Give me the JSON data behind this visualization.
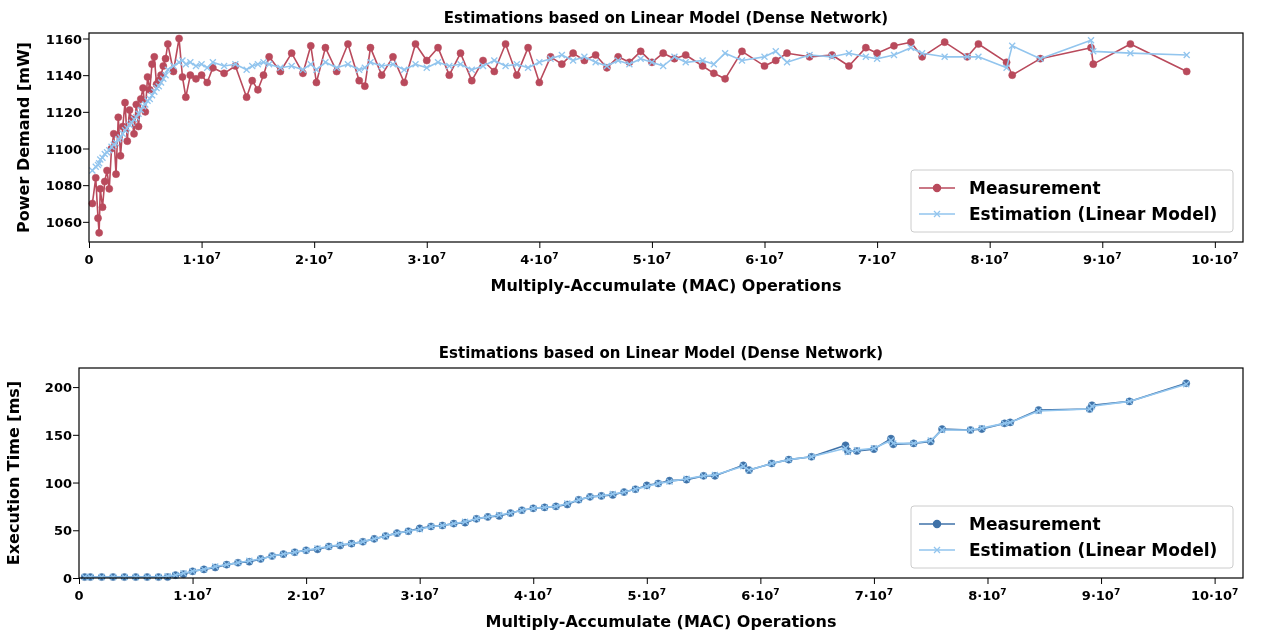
{
  "chart_data": [
    {
      "type": "line",
      "title": "Estimations based on Linear Model (Dense Network)",
      "xlabel": "Multiply-Accumulate (MAC) Operations",
      "ylabel": "Power Demand [mW]",
      "x": [
        300000.0,
        600000.0,
        800000.0,
        900000.0,
        1000000.0,
        1200000.0,
        1400000.0,
        1600000.0,
        1800000.0,
        2000000.0,
        2200000.0,
        2400000.0,
        2600000.0,
        2800000.0,
        3000000.0,
        3200000.0,
        3400000.0,
        3600000.0,
        3800000.0,
        4000000.0,
        4200000.0,
        4400000.0,
        4600000.0,
        4800000.0,
        5000000.0,
        5200000.0,
        5400000.0,
        5600000.0,
        5800000.0,
        6000000.0,
        6200000.0,
        6400000.0,
        6600000.0,
        6800000.0,
        7000000.0,
        7500000.0,
        8000000.0,
        8300000.0,
        8600000.0,
        9000000.0,
        9500000.0,
        10000000.0,
        10500000.0,
        11000000.0,
        12000000.0,
        13000000.0,
        14000000.0,
        14500000.0,
        15000000.0,
        15500000.0,
        16000000.0,
        17000000.0,
        18000000.0,
        19000000.0,
        19700000.0,
        20200000.0,
        21000000.0,
        22000000.0,
        23000000.0,
        24000000.0,
        24500000.0,
        25000000.0,
        26000000.0,
        27000000.0,
        28000000.0,
        29000000.0,
        30000000.0,
        31000000.0,
        32000000.0,
        33000000.0,
        34000000.0,
        35000000.0,
        36000000.0,
        37000000.0,
        38000000.0,
        39000000.0,
        40000000.0,
        41000000.0,
        42000000.0,
        43000000.0,
        44000000.0,
        45000000.0,
        46000000.0,
        47000000.0,
        48000000.0,
        49000000.0,
        50000000.0,
        51000000.0,
        52000000.0,
        53000000.0,
        54500000.0,
        55500000.0,
        56500000.0,
        58000000.0,
        60000000.0,
        61000000.0,
        62000000.0,
        64000000.0,
        66000000.0,
        67500000.0,
        69000000.0,
        70000000.0,
        71500000.0,
        73000000.0,
        74000000.0,
        76000000.0,
        78000000.0,
        79000000.0,
        81500000.0,
        82000000.0,
        84500000.0,
        89000000.0,
        89200000.0,
        92500000.0,
        97500000.0
      ],
      "series": [
        {
          "name": "Measurement",
          "color": "#b94a5c",
          "marker": "circle",
          "values": [
            1070,
            1084,
            1062,
            1054,
            1078,
            1068,
            1082,
            1088,
            1078,
            1100,
            1108,
            1086,
            1117,
            1096,
            1112,
            1125,
            1104,
            1121,
            1116,
            1108,
            1124,
            1112,
            1127,
            1133,
            1120,
            1139,
            1132,
            1146,
            1150,
            1135,
            1137,
            1140,
            1145,
            1149,
            1157,
            1142,
            1160,
            1139,
            1128,
            1140,
            1138,
            1140,
            1136,
            1144,
            1141,
            1145,
            1128,
            1137,
            1132,
            1140,
            1150,
            1142,
            1152,
            1141,
            1156,
            1136,
            1155,
            1142,
            1157,
            1137,
            1134,
            1155,
            1140,
            1150,
            1136,
            1157,
            1148,
            1155,
            1140,
            1152,
            1137,
            1148,
            1142,
            1157,
            1140,
            1155,
            1136,
            1150,
            1146,
            1152,
            1148,
            1151,
            1144,
            1150,
            1147,
            1153,
            1147,
            1152,
            1149,
            1151,
            1145,
            1141,
            1138,
            1153,
            1145,
            1148,
            1152,
            1150,
            1151,
            1145,
            1155,
            1152,
            1156,
            1158,
            1150,
            1158,
            1150,
            1157,
            1147,
            1140,
            1149,
            1155,
            1146,
            1157,
            1142
          ]
        },
        {
          "name": "Estimation (Linear Model)",
          "color": "#92c5ee",
          "marker": "cross",
          "values": [
            1088,
            1090,
            1091,
            1092,
            1094,
            1095,
            1097,
            1098,
            1099,
            1101,
            1102,
            1103,
            1105,
            1106,
            1108,
            1110,
            1111,
            1113,
            1114,
            1116,
            1117,
            1119,
            1121,
            1123,
            1124,
            1126,
            1127,
            1129,
            1131,
            1133,
            1134,
            1136,
            1138,
            1140,
            1143,
            1145,
            1147,
            1148,
            1146,
            1147,
            1145,
            1146,
            1144,
            1147,
            1145,
            1146,
            1143,
            1145,
            1146,
            1147,
            1146,
            1144,
            1145,
            1143,
            1146,
            1143,
            1147,
            1144,
            1146,
            1143,
            1144,
            1147,
            1145,
            1146,
            1143,
            1146,
            1144,
            1147,
            1145,
            1146,
            1143,
            1145,
            1148,
            1145,
            1146,
            1144,
            1147,
            1149,
            1151,
            1148,
            1150,
            1147,
            1145,
            1148,
            1146,
            1149,
            1147,
            1145,
            1150,
            1147,
            1148,
            1146,
            1152,
            1148,
            1150,
            1153,
            1147,
            1151,
            1150,
            1152,
            1150,
            1149,
            1151,
            1155,
            1152,
            1150,
            1150,
            1150,
            1144,
            1156,
            1149,
            1159,
            1153,
            1152,
            1151
          ]
        }
      ],
      "xlim": [
        0,
        102500000.0
      ],
      "xticks": [
        0,
        {
          "value": 10000000.0,
          "label": "1·10$^{7}$"
        },
        {
          "value": 20000000.0,
          "label": "2·10$^{7}$"
        },
        {
          "value": 30000000.0,
          "label": "3·10$^{7}$"
        },
        {
          "value": 40000000.0,
          "label": "4·10$^{7}$"
        },
        {
          "value": 50000000.0,
          "label": "5·10$^{7}$"
        },
        {
          "value": 60000000.0,
          "label": "6·10$^{7}$"
        },
        {
          "value": 70000000.0,
          "label": "7·10$^{7}$"
        },
        {
          "value": 80000000.0,
          "label": "8·10$^{7}$"
        },
        {
          "value": 90000000.0,
          "label": "9·10$^{7}$"
        },
        {
          "value": 100000000.0,
          "label": "10·10$^{7}$"
        }
      ],
      "ylim": [
        1049,
        1163
      ],
      "yticks": [
        1060,
        1080,
        1100,
        1120,
        1140,
        1160
      ],
      "legend": "bottom right"
    },
    {
      "type": "line",
      "title": "Estimations based on Linear Model (Dense Network)",
      "xlabel": "Multiply-Accumulate (MAC) Operations",
      "ylabel": "Execution Time [ms]",
      "x": [
        500000.0,
        1000000.0,
        2000000.0,
        3000000.0,
        4000000.0,
        5000000.0,
        6000000.0,
        7000000.0,
        7800000.0,
        8500000.0,
        9200000.0,
        10000000.0,
        11000000.0,
        12000000.0,
        13000000.0,
        14000000.0,
        15000000.0,
        16000000.0,
        17000000.0,
        18000000.0,
        19000000.0,
        20000000.0,
        21000000.0,
        22000000.0,
        23000000.0,
        24000000.0,
        25000000.0,
        26000000.0,
        27000000.0,
        28000000.0,
        29000000.0,
        30000000.0,
        31000000.0,
        32000000.0,
        33000000.0,
        34000000.0,
        35000000.0,
        36000000.0,
        37000000.0,
        38000000.0,
        39000000.0,
        40000000.0,
        41000000.0,
        42000000.0,
        43000000.0,
        44000000.0,
        45000000.0,
        46000000.0,
        47000000.0,
        48000000.0,
        49000000.0,
        50000000.0,
        51000000.0,
        52000000.0,
        53500000.0,
        55000000.0,
        56000000.0,
        58500000.0,
        59000000.0,
        61000000.0,
        62500000.0,
        64500000.0,
        67500000.0,
        67700000.0,
        68500000.0,
        70000000.0,
        71500000.0,
        71700000.0,
        73500000.0,
        75000000.0,
        76000000.0,
        78500000.0,
        79500000.0,
        81500000.0,
        82000000.0,
        84500000.0,
        89000000.0,
        89200000.0,
        92500000.0,
        97500000.0
      ],
      "series": [
        {
          "name": "Measurement",
          "color": "#3f72a8",
          "marker": "circle",
          "values": [
            1,
            1,
            1,
            1,
            1,
            1,
            1,
            1,
            1,
            3,
            4,
            7,
            9,
            11,
            14,
            16,
            17,
            20,
            23,
            25,
            27,
            29,
            30,
            33,
            34,
            36,
            38,
            41,
            44,
            47,
            49,
            52,
            54,
            55,
            57,
            58,
            62,
            64,
            65,
            68,
            71,
            73,
            74,
            75,
            77,
            82,
            85,
            86,
            87,
            90,
            93,
            97,
            99,
            102,
            103,
            107,
            107,
            118,
            113,
            120,
            124,
            127,
            139,
            133,
            133,
            135,
            146,
            140,
            141,
            143,
            156,
            155,
            156,
            162,
            163,
            176,
            177,
            181,
            185,
            204
          ]
        },
        {
          "name": "Estimation (Linear Model)",
          "color": "#92c5ee",
          "marker": "cross",
          "values": [
            1,
            1,
            1,
            1,
            1,
            1,
            1,
            1,
            2,
            3,
            5,
            7,
            9,
            12,
            14,
            16,
            18,
            20,
            23,
            25,
            27,
            29,
            31,
            33,
            35,
            36,
            38,
            41,
            44,
            47,
            49,
            51,
            54,
            55,
            57,
            59,
            62,
            64,
            66,
            68,
            71,
            73,
            74,
            75,
            78,
            82,
            85,
            86,
            88,
            90,
            93,
            96,
            99,
            101,
            104,
            107,
            108,
            117,
            113,
            120,
            124,
            127,
            136,
            132,
            134,
            136,
            144,
            141,
            141,
            144,
            155,
            155,
            157,
            162,
            163,
            175,
            177,
            180,
            185,
            203
          ]
        }
      ],
      "xlim": [
        0,
        102500000.0
      ],
      "xticks": [
        0,
        {
          "value": 10000000.0,
          "label": "1·10$^{7}$"
        },
        {
          "value": 20000000.0,
          "label": "2·10$^{7}$"
        },
        {
          "value": 30000000.0,
          "label": "3·10$^{7}$"
        },
        {
          "value": 40000000.0,
          "label": "4·10$^{7}$"
        },
        {
          "value": 50000000.0,
          "label": "5·10$^{7}$"
        },
        {
          "value": 60000000.0,
          "label": "6·10$^{7}$"
        },
        {
          "value": 70000000.0,
          "label": "7·10$^{7}$"
        },
        {
          "value": 80000000.0,
          "label": "8·10$^{7}$"
        },
        {
          "value": 90000000.0,
          "label": "9·10$^{7}$"
        },
        {
          "value": 100000000.0,
          "label": "10·10$^{7}$"
        }
      ],
      "ylim": [
        0,
        220
      ],
      "yticks": [
        0,
        50,
        100,
        150,
        200
      ],
      "legend": "bottom right"
    }
  ]
}
